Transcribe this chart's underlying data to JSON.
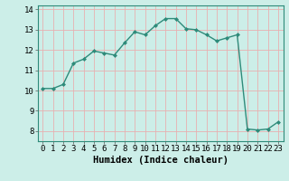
{
  "x": [
    0,
    1,
    2,
    3,
    4,
    5,
    6,
    7,
    8,
    9,
    10,
    11,
    12,
    13,
    14,
    15,
    16,
    17,
    18,
    19,
    20,
    21,
    22,
    23
  ],
  "y": [
    10.1,
    10.1,
    10.3,
    11.35,
    11.55,
    11.95,
    11.85,
    11.75,
    12.35,
    12.9,
    12.75,
    13.2,
    13.55,
    13.55,
    13.05,
    13.0,
    12.75,
    12.45,
    12.6,
    12.75,
    8.1,
    8.05,
    8.1,
    8.45
  ],
  "line_color": "#2e8b7a",
  "marker": "D",
  "marker_size": 2.0,
  "bg_color": "#cceee8",
  "grid_color": "#e8b0b0",
  "xlabel": "Humidex (Indice chaleur)",
  "xlabel_fontsize": 7.5,
  "xlim": [
    -0.5,
    23.5
  ],
  "ylim": [
    7.5,
    14.2
  ],
  "yticks": [
    8,
    9,
    10,
    11,
    12,
    13,
    14
  ],
  "xticks": [
    0,
    1,
    2,
    3,
    4,
    5,
    6,
    7,
    8,
    9,
    10,
    11,
    12,
    13,
    14,
    15,
    16,
    17,
    18,
    19,
    20,
    21,
    22,
    23
  ],
  "tick_fontsize": 6.5,
  "linewidth": 1.0
}
